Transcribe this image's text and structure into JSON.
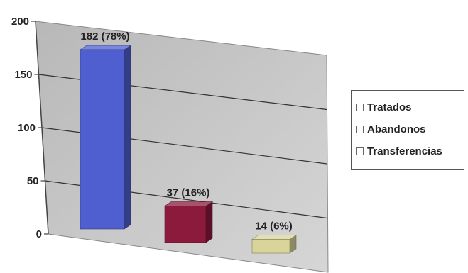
{
  "chart_data": {
    "type": "bar",
    "categories": [
      "Tratados",
      "Abandonos",
      "Transferencias"
    ],
    "values": [
      182,
      37,
      14
    ],
    "data_labels": [
      "182 (78%)",
      "37 (16%)",
      "14 (6%)"
    ],
    "ylim": [
      0,
      200
    ],
    "yticks": [
      0,
      50,
      100,
      150,
      200
    ],
    "ytick_labels": [
      "0",
      "50",
      "100",
      "150",
      "200"
    ],
    "grid": true,
    "three_d": true,
    "legend_position": "right",
    "colors": [
      "#4f5fcf",
      "#8b1a3c",
      "#d8d49a"
    ],
    "wall_color": "#c4c4c4"
  },
  "legend": {
    "items": [
      {
        "label": "Tratados"
      },
      {
        "label": "Abandonos"
      },
      {
        "label": "Transferencias"
      }
    ]
  }
}
